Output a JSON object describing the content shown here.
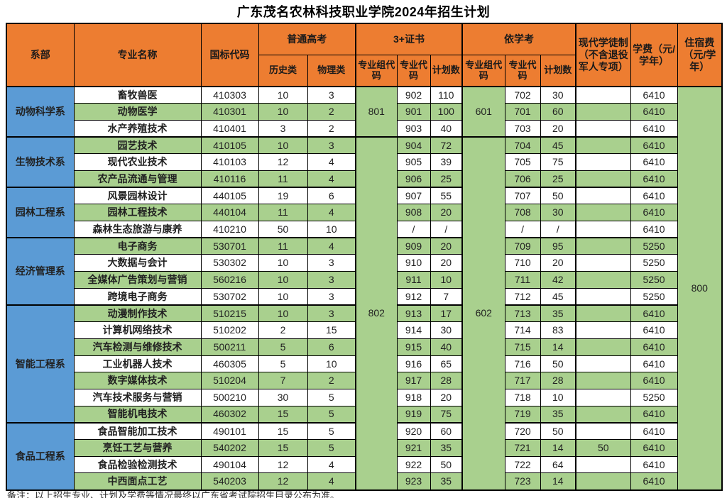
{
  "title": "广东茂名农林科技职业学院2024年招生计划",
  "note": "备注：以上招生专业、计划及学费等情况最终以广东省考试院招生目录公布为准。",
  "colors": {
    "header_bg": "#ED7D31",
    "department_bg": "#5B9BD5",
    "row_green": "#A9D08E",
    "row_white": "#FFFFFF",
    "border": "#000000"
  },
  "header": {
    "dept": "系部",
    "major": "专业名称",
    "code": "国标代码",
    "gaokao": "普通高考",
    "history": "历史类",
    "physics": "物理类",
    "cert": "3+证书",
    "yixuekao": "依学考",
    "group_code": "专业组代码",
    "major_code": "专业代码",
    "plan_count": "计划数",
    "apprentice": "现代学徒制（不含退役军人专项）",
    "tuition": "学费（元/学年）",
    "accommodation": "住宿费（元/学年）"
  },
  "departments": [
    {
      "name": "动物科学系",
      "start": 0,
      "rows": 3
    },
    {
      "name": "生物技术系",
      "start": 3,
      "rows": 3
    },
    {
      "name": "园林工程系",
      "start": 6,
      "rows": 3
    },
    {
      "name": "经济管理系",
      "start": 9,
      "rows": 4
    },
    {
      "name": "智能工程系",
      "start": 13,
      "rows": 7
    },
    {
      "name": "食品工程系",
      "start": 20,
      "rows": 4
    }
  ],
  "cert_group_codes": [
    {
      "code": "801",
      "start": 0,
      "rows": 3
    },
    {
      "code": "802",
      "start": 3,
      "rows": 21
    }
  ],
  "yxk_group_codes": [
    {
      "code": "601",
      "start": 0,
      "rows": 3
    },
    {
      "code": "602",
      "start": 3,
      "rows": 21
    }
  ],
  "accommodation": {
    "value": "800",
    "start": 0,
    "rows": 24
  },
  "section_starts": [
    3,
    6,
    9,
    13,
    20
  ],
  "rows": [
    {
      "major": "畜牧兽医",
      "code": "410303",
      "hist": "10",
      "phys": "3",
      "cert_code": "902",
      "cert_plan": "110",
      "yxk_code": "702",
      "yxk_plan": "30",
      "apprentice": "",
      "tuition": "6410"
    },
    {
      "major": "动物医学",
      "code": "410301",
      "hist": "10",
      "phys": "2",
      "cert_code": "901",
      "cert_plan": "100",
      "yxk_code": "701",
      "yxk_plan": "60",
      "apprentice": "",
      "tuition": "6410"
    },
    {
      "major": "水产养殖技术",
      "code": "410401",
      "hist": "3",
      "phys": "2",
      "cert_code": "903",
      "cert_plan": "40",
      "yxk_code": "703",
      "yxk_plan": "20",
      "apprentice": "",
      "tuition": "6410"
    },
    {
      "major": "园艺技术",
      "code": "410105",
      "hist": "10",
      "phys": "3",
      "cert_code": "904",
      "cert_plan": "72",
      "yxk_code": "704",
      "yxk_plan": "45",
      "apprentice": "",
      "tuition": "6410"
    },
    {
      "major": "现代农业技术",
      "code": "410103",
      "hist": "12",
      "phys": "4",
      "cert_code": "905",
      "cert_plan": "39",
      "yxk_code": "705",
      "yxk_plan": "75",
      "apprentice": "",
      "tuition": "6410"
    },
    {
      "major": "农产品流通与管理",
      "code": "410116",
      "hist": "11",
      "phys": "4",
      "cert_code": "906",
      "cert_plan": "25",
      "yxk_code": "706",
      "yxk_plan": "25",
      "apprentice": "",
      "tuition": "6410"
    },
    {
      "major": "风景园林设计",
      "code": "440105",
      "hist": "19",
      "phys": "6",
      "cert_code": "907",
      "cert_plan": "55",
      "yxk_code": "707",
      "yxk_plan": "50",
      "apprentice": "",
      "tuition": "6410"
    },
    {
      "major": "园林工程技术",
      "code": "440104",
      "hist": "11",
      "phys": "4",
      "cert_code": "908",
      "cert_plan": "20",
      "yxk_code": "708",
      "yxk_plan": "30",
      "apprentice": "",
      "tuition": "6410"
    },
    {
      "major": "森林生态旅游与康养",
      "code": "410210",
      "hist": "50",
      "phys": "10",
      "cert_code": "/",
      "cert_plan": "/",
      "yxk_code": "/",
      "yxk_plan": "/",
      "apprentice": "",
      "tuition": "6410"
    },
    {
      "major": "电子商务",
      "code": "530701",
      "hist": "11",
      "phys": "4",
      "cert_code": "909",
      "cert_plan": "20",
      "yxk_code": "709",
      "yxk_plan": "95",
      "apprentice": "",
      "tuition": "5250"
    },
    {
      "major": "大数据与会计",
      "code": "530302",
      "hist": "10",
      "phys": "3",
      "cert_code": "910",
      "cert_plan": "20",
      "yxk_code": "710",
      "yxk_plan": "20",
      "apprentice": "",
      "tuition": "5250"
    },
    {
      "major": "全媒体广告策划与营销",
      "code": "560216",
      "hist": "10",
      "phys": "3",
      "cert_code": "911",
      "cert_plan": "10",
      "yxk_code": "711",
      "yxk_plan": "42",
      "apprentice": "",
      "tuition": "5250"
    },
    {
      "major": "跨境电子商务",
      "code": "530702",
      "hist": "10",
      "phys": "3",
      "cert_code": "912",
      "cert_plan": "7",
      "yxk_code": "712",
      "yxk_plan": "45",
      "apprentice": "",
      "tuition": "5250"
    },
    {
      "major": "动漫制作技术",
      "code": "510215",
      "hist": "10",
      "phys": "3",
      "cert_code": "913",
      "cert_plan": "17",
      "yxk_code": "713",
      "yxk_plan": "35",
      "apprentice": "",
      "tuition": "6410"
    },
    {
      "major": "计算机网络技术",
      "code": "510202",
      "hist": "2",
      "phys": "15",
      "cert_code": "914",
      "cert_plan": "30",
      "yxk_code": "714",
      "yxk_plan": "83",
      "apprentice": "",
      "tuition": "6410"
    },
    {
      "major": "汽车检测与维修技术",
      "code": "500211",
      "hist": "5",
      "phys": "6",
      "cert_code": "915",
      "cert_plan": "40",
      "yxk_code": "715",
      "yxk_plan": "14",
      "apprentice": "",
      "tuition": "6410"
    },
    {
      "major": "工业机器人技术",
      "code": "460305",
      "hist": "5",
      "phys": "10",
      "cert_code": "916",
      "cert_plan": "65",
      "yxk_code": "716",
      "yxk_plan": "50",
      "apprentice": "",
      "tuition": "6410"
    },
    {
      "major": "数字媒体技术",
      "code": "510204",
      "hist": "7",
      "phys": "2",
      "cert_code": "917",
      "cert_plan": "28",
      "yxk_code": "717",
      "yxk_plan": "28",
      "apprentice": "",
      "tuition": "6410"
    },
    {
      "major": "汽车技术服务与营销",
      "code": "500210",
      "hist": "30",
      "phys": "5",
      "cert_code": "918",
      "cert_plan": "20",
      "yxk_code": "718",
      "yxk_plan": "10",
      "apprentice": "",
      "tuition": "5250"
    },
    {
      "major": "智能机电技术",
      "code": "460302",
      "hist": "15",
      "phys": "5",
      "cert_code": "919",
      "cert_plan": "75",
      "yxk_code": "719",
      "yxk_plan": "35",
      "apprentice": "",
      "tuition": "6410"
    },
    {
      "major": "食品智能加工技术",
      "code": "490101",
      "hist": "15",
      "phys": "5",
      "cert_code": "920",
      "cert_plan": "60",
      "yxk_code": "720",
      "yxk_plan": "50",
      "apprentice": "",
      "tuition": "6410"
    },
    {
      "major": "烹饪工艺与营养",
      "code": "540202",
      "hist": "15",
      "phys": "5",
      "cert_code": "921",
      "cert_plan": "35",
      "yxk_code": "721",
      "yxk_plan": "14",
      "apprentice": "50",
      "tuition": "6410"
    },
    {
      "major": "食品检验检测技术",
      "code": "490104",
      "hist": "12",
      "phys": "4",
      "cert_code": "922",
      "cert_plan": "50",
      "yxk_code": "722",
      "yxk_plan": "64",
      "apprentice": "",
      "tuition": "6410"
    },
    {
      "major": "中西面点工艺",
      "code": "540203",
      "hist": "12",
      "phys": "4",
      "cert_code": "923",
      "cert_plan": "35",
      "yxk_code": "723",
      "yxk_plan": "14",
      "apprentice": "",
      "tuition": "6410"
    }
  ]
}
